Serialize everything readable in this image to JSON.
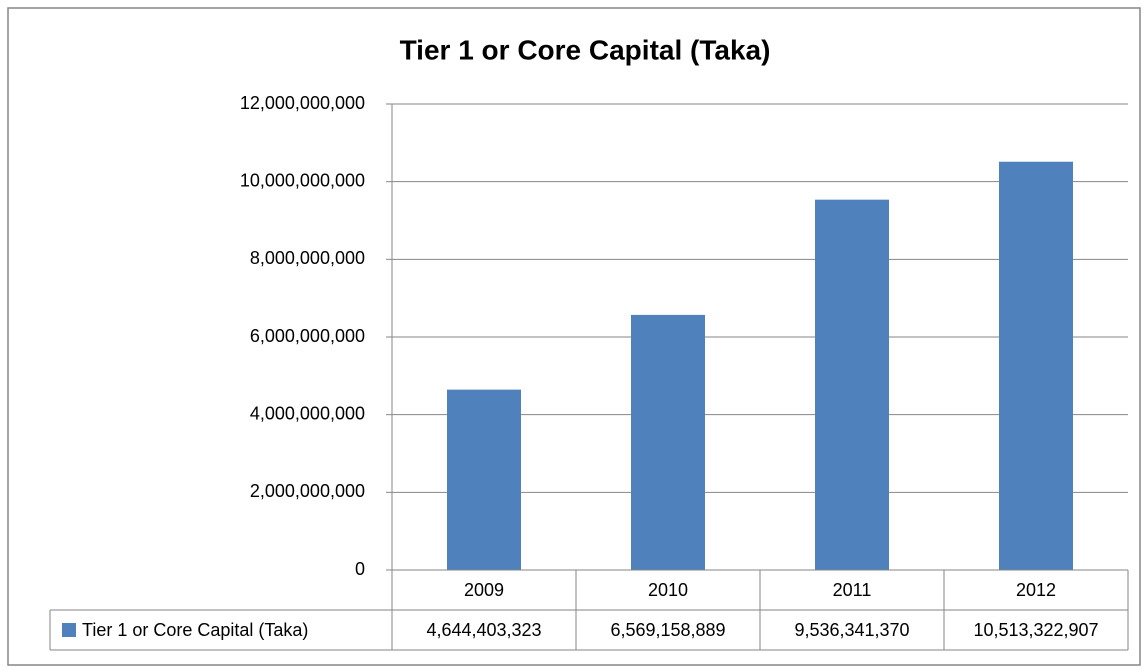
{
  "chart_data": {
    "type": "bar",
    "title": "Tier 1 or Core Capital (Taka)",
    "categories": [
      "2009",
      "2010",
      "2011",
      "2012"
    ],
    "series": [
      {
        "name": "Tier 1 or Core Capital (Taka)",
        "color": "#4f81bd",
        "values": [
          4644403323,
          6569158889,
          9536341370,
          10513322907
        ],
        "value_labels": [
          "4,644,403,323",
          "6,569,158,889",
          "9,536,341,370",
          "10,513,322,907"
        ]
      }
    ],
    "ylim": [
      0,
      12000000000
    ],
    "yticks": [
      0,
      {
        "value": 2000000000,
        "label": "2,000,000,000"
      },
      {
        "value": 4000000000,
        "label": "4,000,000,000"
      },
      {
        "value": 6000000000,
        "label": "6,000,000,000"
      },
      {
        "value": 8000000000,
        "label": "8,000,000,000"
      },
      {
        "value": 10000000000,
        "label": "10,000,000,000"
      },
      {
        "value": 12000000000,
        "label": "12,000,000,000"
      }
    ],
    "grid": true,
    "data_table": true
  }
}
